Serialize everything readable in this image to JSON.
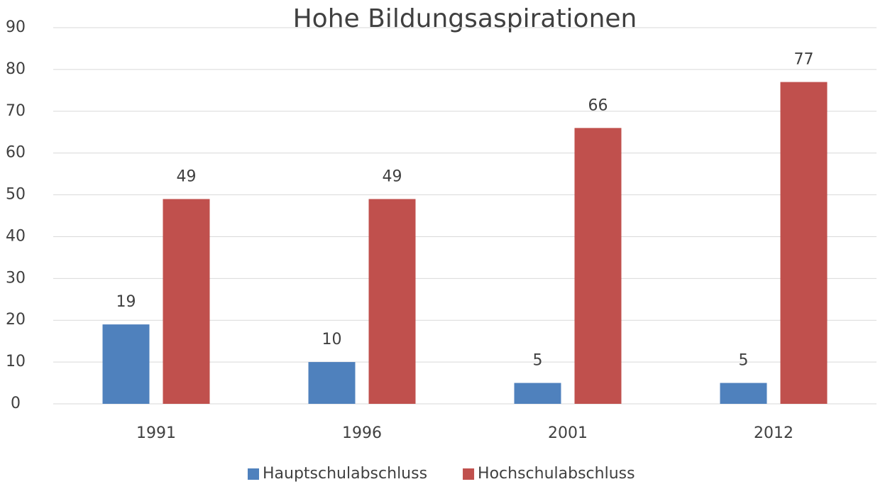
{
  "chart_data": {
    "type": "bar",
    "title": "Hohe Bildungsaspirationen",
    "categories": [
      "1991",
      "1996",
      "2001",
      "2012"
    ],
    "series": [
      {
        "name": "Hauptschulabschluss",
        "color": "#4f81bd",
        "values": [
          19,
          10,
          5,
          5
        ]
      },
      {
        "name": "Hochschulabschluss",
        "color": "#c0504d",
        "values": [
          49,
          49,
          66,
          77
        ]
      }
    ],
    "ylim": [
      0,
      90
    ],
    "yticks": [
      0,
      10,
      20,
      30,
      40,
      50,
      60,
      70,
      80,
      90
    ],
    "grid": true,
    "legend": "bottom"
  }
}
